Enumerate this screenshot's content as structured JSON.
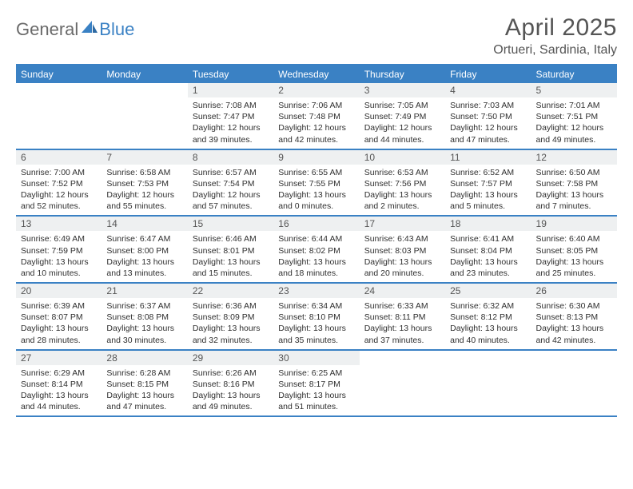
{
  "logo": {
    "general": "General",
    "blue": "Blue"
  },
  "title": "April 2025",
  "location": "Ortueri, Sardinia, Italy",
  "colors": {
    "accent": "#3a81c4",
    "header_bg": "#3a81c4",
    "daynum_bg": "#eef0f1",
    "border": "#3a81c4",
    "text_title": "#555555",
    "text_body": "#2f2f2f"
  },
  "dow": [
    "Sunday",
    "Monday",
    "Tuesday",
    "Wednesday",
    "Thursday",
    "Friday",
    "Saturday"
  ],
  "weeks": [
    [
      {
        "n": "",
        "sr": "",
        "ss": "",
        "dl": ""
      },
      {
        "n": "",
        "sr": "",
        "ss": "",
        "dl": ""
      },
      {
        "n": "1",
        "sr": "Sunrise: 7:08 AM",
        "ss": "Sunset: 7:47 PM",
        "dl": "Daylight: 12 hours and 39 minutes."
      },
      {
        "n": "2",
        "sr": "Sunrise: 7:06 AM",
        "ss": "Sunset: 7:48 PM",
        "dl": "Daylight: 12 hours and 42 minutes."
      },
      {
        "n": "3",
        "sr": "Sunrise: 7:05 AM",
        "ss": "Sunset: 7:49 PM",
        "dl": "Daylight: 12 hours and 44 minutes."
      },
      {
        "n": "4",
        "sr": "Sunrise: 7:03 AM",
        "ss": "Sunset: 7:50 PM",
        "dl": "Daylight: 12 hours and 47 minutes."
      },
      {
        "n": "5",
        "sr": "Sunrise: 7:01 AM",
        "ss": "Sunset: 7:51 PM",
        "dl": "Daylight: 12 hours and 49 minutes."
      }
    ],
    [
      {
        "n": "6",
        "sr": "Sunrise: 7:00 AM",
        "ss": "Sunset: 7:52 PM",
        "dl": "Daylight: 12 hours and 52 minutes."
      },
      {
        "n": "7",
        "sr": "Sunrise: 6:58 AM",
        "ss": "Sunset: 7:53 PM",
        "dl": "Daylight: 12 hours and 55 minutes."
      },
      {
        "n": "8",
        "sr": "Sunrise: 6:57 AM",
        "ss": "Sunset: 7:54 PM",
        "dl": "Daylight: 12 hours and 57 minutes."
      },
      {
        "n": "9",
        "sr": "Sunrise: 6:55 AM",
        "ss": "Sunset: 7:55 PM",
        "dl": "Daylight: 13 hours and 0 minutes."
      },
      {
        "n": "10",
        "sr": "Sunrise: 6:53 AM",
        "ss": "Sunset: 7:56 PM",
        "dl": "Daylight: 13 hours and 2 minutes."
      },
      {
        "n": "11",
        "sr": "Sunrise: 6:52 AM",
        "ss": "Sunset: 7:57 PM",
        "dl": "Daylight: 13 hours and 5 minutes."
      },
      {
        "n": "12",
        "sr": "Sunrise: 6:50 AM",
        "ss": "Sunset: 7:58 PM",
        "dl": "Daylight: 13 hours and 7 minutes."
      }
    ],
    [
      {
        "n": "13",
        "sr": "Sunrise: 6:49 AM",
        "ss": "Sunset: 7:59 PM",
        "dl": "Daylight: 13 hours and 10 minutes."
      },
      {
        "n": "14",
        "sr": "Sunrise: 6:47 AM",
        "ss": "Sunset: 8:00 PM",
        "dl": "Daylight: 13 hours and 13 minutes."
      },
      {
        "n": "15",
        "sr": "Sunrise: 6:46 AM",
        "ss": "Sunset: 8:01 PM",
        "dl": "Daylight: 13 hours and 15 minutes."
      },
      {
        "n": "16",
        "sr": "Sunrise: 6:44 AM",
        "ss": "Sunset: 8:02 PM",
        "dl": "Daylight: 13 hours and 18 minutes."
      },
      {
        "n": "17",
        "sr": "Sunrise: 6:43 AM",
        "ss": "Sunset: 8:03 PM",
        "dl": "Daylight: 13 hours and 20 minutes."
      },
      {
        "n": "18",
        "sr": "Sunrise: 6:41 AM",
        "ss": "Sunset: 8:04 PM",
        "dl": "Daylight: 13 hours and 23 minutes."
      },
      {
        "n": "19",
        "sr": "Sunrise: 6:40 AM",
        "ss": "Sunset: 8:05 PM",
        "dl": "Daylight: 13 hours and 25 minutes."
      }
    ],
    [
      {
        "n": "20",
        "sr": "Sunrise: 6:39 AM",
        "ss": "Sunset: 8:07 PM",
        "dl": "Daylight: 13 hours and 28 minutes."
      },
      {
        "n": "21",
        "sr": "Sunrise: 6:37 AM",
        "ss": "Sunset: 8:08 PM",
        "dl": "Daylight: 13 hours and 30 minutes."
      },
      {
        "n": "22",
        "sr": "Sunrise: 6:36 AM",
        "ss": "Sunset: 8:09 PM",
        "dl": "Daylight: 13 hours and 32 minutes."
      },
      {
        "n": "23",
        "sr": "Sunrise: 6:34 AM",
        "ss": "Sunset: 8:10 PM",
        "dl": "Daylight: 13 hours and 35 minutes."
      },
      {
        "n": "24",
        "sr": "Sunrise: 6:33 AM",
        "ss": "Sunset: 8:11 PM",
        "dl": "Daylight: 13 hours and 37 minutes."
      },
      {
        "n": "25",
        "sr": "Sunrise: 6:32 AM",
        "ss": "Sunset: 8:12 PM",
        "dl": "Daylight: 13 hours and 40 minutes."
      },
      {
        "n": "26",
        "sr": "Sunrise: 6:30 AM",
        "ss": "Sunset: 8:13 PM",
        "dl": "Daylight: 13 hours and 42 minutes."
      }
    ],
    [
      {
        "n": "27",
        "sr": "Sunrise: 6:29 AM",
        "ss": "Sunset: 8:14 PM",
        "dl": "Daylight: 13 hours and 44 minutes."
      },
      {
        "n": "28",
        "sr": "Sunrise: 6:28 AM",
        "ss": "Sunset: 8:15 PM",
        "dl": "Daylight: 13 hours and 47 minutes."
      },
      {
        "n": "29",
        "sr": "Sunrise: 6:26 AM",
        "ss": "Sunset: 8:16 PM",
        "dl": "Daylight: 13 hours and 49 minutes."
      },
      {
        "n": "30",
        "sr": "Sunrise: 6:25 AM",
        "ss": "Sunset: 8:17 PM",
        "dl": "Daylight: 13 hours and 51 minutes."
      },
      {
        "n": "",
        "sr": "",
        "ss": "",
        "dl": ""
      },
      {
        "n": "",
        "sr": "",
        "ss": "",
        "dl": ""
      },
      {
        "n": "",
        "sr": "",
        "ss": "",
        "dl": ""
      }
    ]
  ]
}
